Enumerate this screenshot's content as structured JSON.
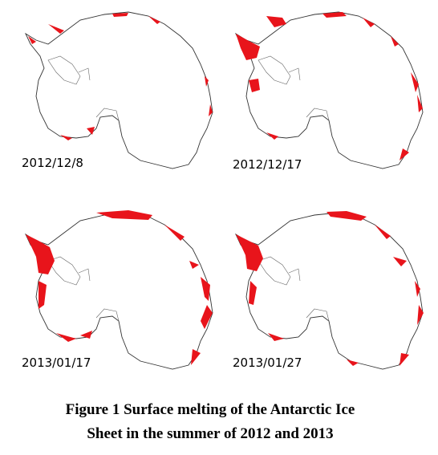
{
  "panels": [
    {
      "label": "2012/12/8"
    },
    {
      "label": "2012/12/17"
    },
    {
      "label": "2013/01/17"
    },
    {
      "label": "2013/01/27"
    }
  ],
  "caption": {
    "line1": "Figure 1  Surface melting of the Antarctic Ice",
    "line2": "Sheet in the summer of 2012 and 2013"
  }
}
